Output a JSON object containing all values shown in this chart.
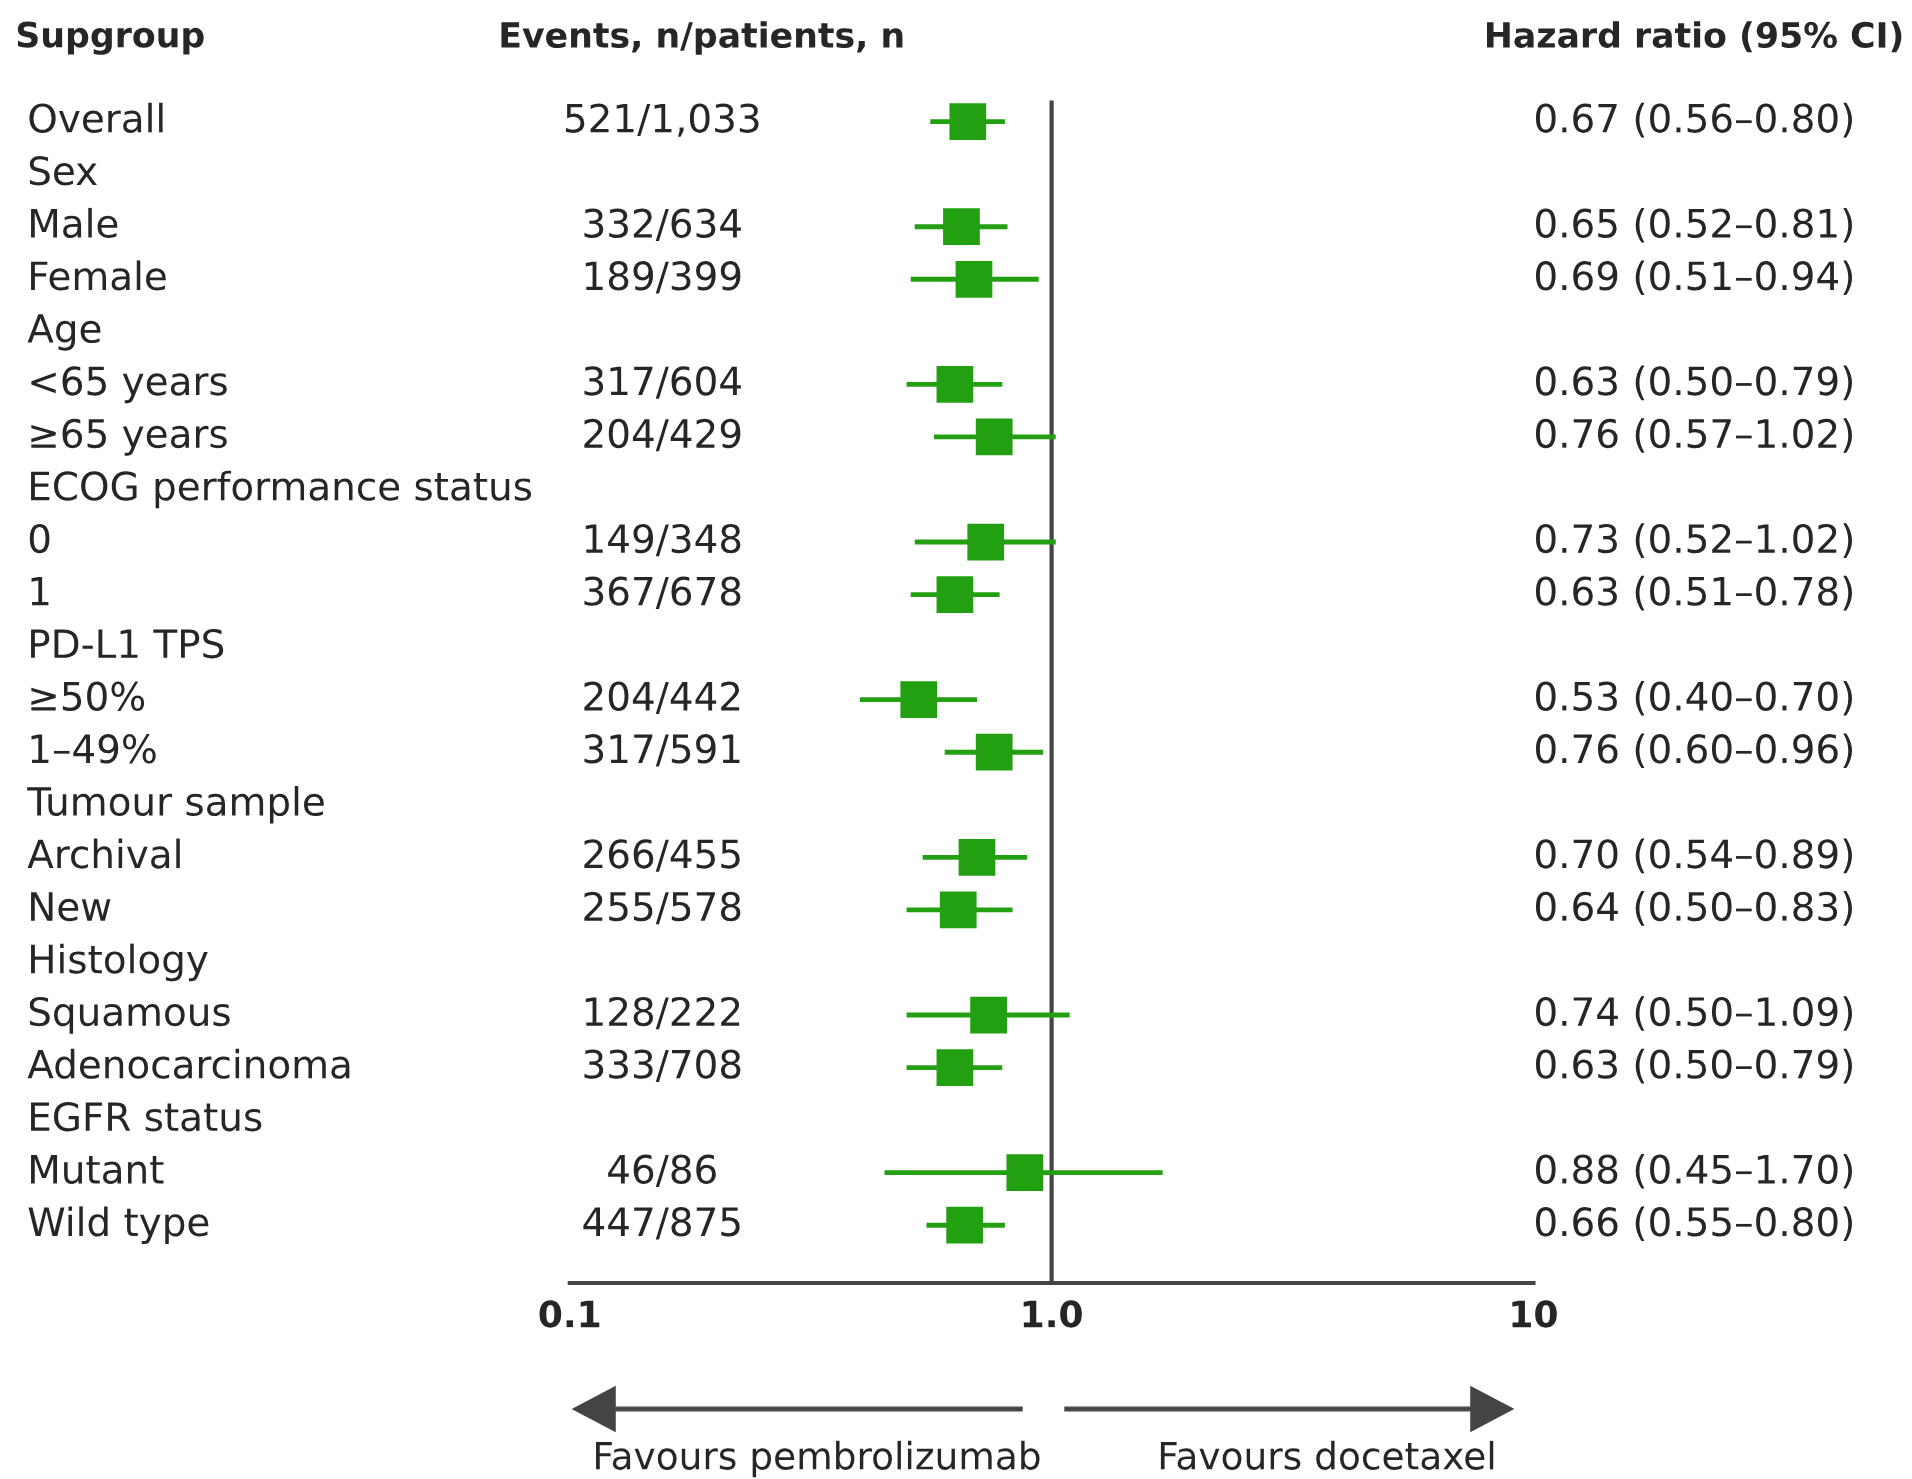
{
  "chart_data": {
    "type": "scatter",
    "orientation": "horizontal",
    "categories": [
      "Overall",
      "Sex",
      "Male",
      "Female",
      "Age",
      "<65 years",
      "≥65 years",
      "ECOG performance status",
      "0",
      "1",
      "PD-L1 TPS",
      "≥50%",
      "1–49%",
      "Tumour sample",
      "Archival",
      "New",
      "Histology",
      "Squamous",
      "Adenocarcinoma",
      "EGFR status",
      "Mutant",
      "Wild type"
    ],
    "series": [
      {
        "color": "#22a012",
        "values": [
          0.67,
          null,
          0.65,
          0.69,
          null,
          0.63,
          0.76,
          null,
          0.73,
          0.63,
          null,
          0.53,
          0.76,
          null,
          0.7,
          0.64,
          null,
          0.74,
          0.63,
          null,
          0.88,
          0.66
        ],
        "errors": [
          [
            0.56,
            0.8
          ],
          null,
          [
            0.52,
            0.81
          ],
          [
            0.51,
            0.94
          ],
          null,
          [
            0.5,
            0.79
          ],
          [
            0.57,
            1.02
          ],
          null,
          [
            0.52,
            1.02
          ],
          [
            0.51,
            0.78
          ],
          null,
          [
            0.4,
            0.7
          ],
          [
            0.6,
            0.96
          ],
          null,
          [
            0.54,
            0.89
          ],
          [
            0.5,
            0.83
          ],
          null,
          [
            0.5,
            1.09
          ],
          [
            0.5,
            0.79
          ],
          null,
          [
            0.45,
            1.7
          ],
          [
            0.55,
            0.8
          ]
        ],
        "value_labels": [
          "0.67 (0.56–0.80)",
          null,
          "0.65 (0.52–0.81)",
          "0.69 (0.51–0.94)",
          null,
          "0.63 (0.50–0.79)",
          "0.76 (0.57–1.02)",
          null,
          "0.73 (0.52–1.02)",
          "0.63 (0.51–0.78)",
          null,
          "0.53 (0.40–0.70)",
          "0.76 (0.60–0.96)",
          null,
          "0.70 (0.54–0.89)",
          "0.64 (0.50–0.83)",
          null,
          "0.74 (0.50–1.09)",
          "0.63 (0.50–0.79)",
          null,
          "0.88 (0.45–1.70)",
          "0.66 (0.55–0.80)"
        ]
      }
    ],
    "log": "x",
    "xlim": [
      0.1,
      10
    ],
    "xticks": [
      0.1,
      {
        "value": 1,
        "label": "1.0"
      },
      10
    ],
    "ref_lines": [
      {
        "axis": "x",
        "value": 1,
        "color": "#444444"
      }
    ],
    "marker": "square",
    "grid": false,
    "legend": false,
    "annotations": [
      "Supgroup",
      "Events, n/patients, n",
      "Hazard ratio (95% CI)",
      "521/1,033",
      "332/634",
      "189/399",
      "317/604",
      "204/429",
      "149/348",
      "367/678",
      "204/442",
      "317/591",
      "266/455",
      "255/578",
      "128/222",
      "333/708",
      "46/86",
      "447/875",
      "Favours pembrolizumab",
      "Favours docetaxel"
    ]
  }
}
